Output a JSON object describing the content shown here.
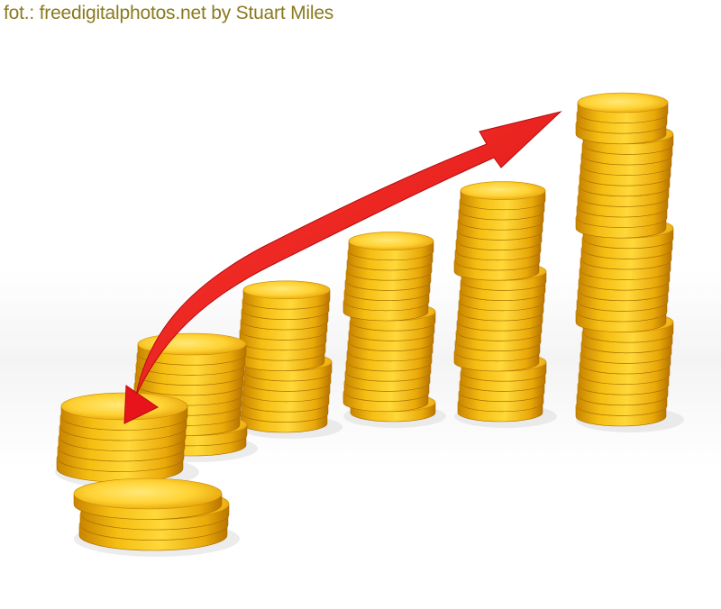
{
  "photo_credit": "fot.: freedigitalphotos.net by Stuart Miles",
  "scene": {
    "subject": "coin-stacks-growth",
    "colors": {
      "gold": "#F2B90F",
      "gold_light": "#FFE36A",
      "gold_dark": "#B27500",
      "arrow": "#E8141B",
      "arrow_dark": "#B50B0F",
      "floor_shadow": "#E9E9E9"
    }
  }
}
